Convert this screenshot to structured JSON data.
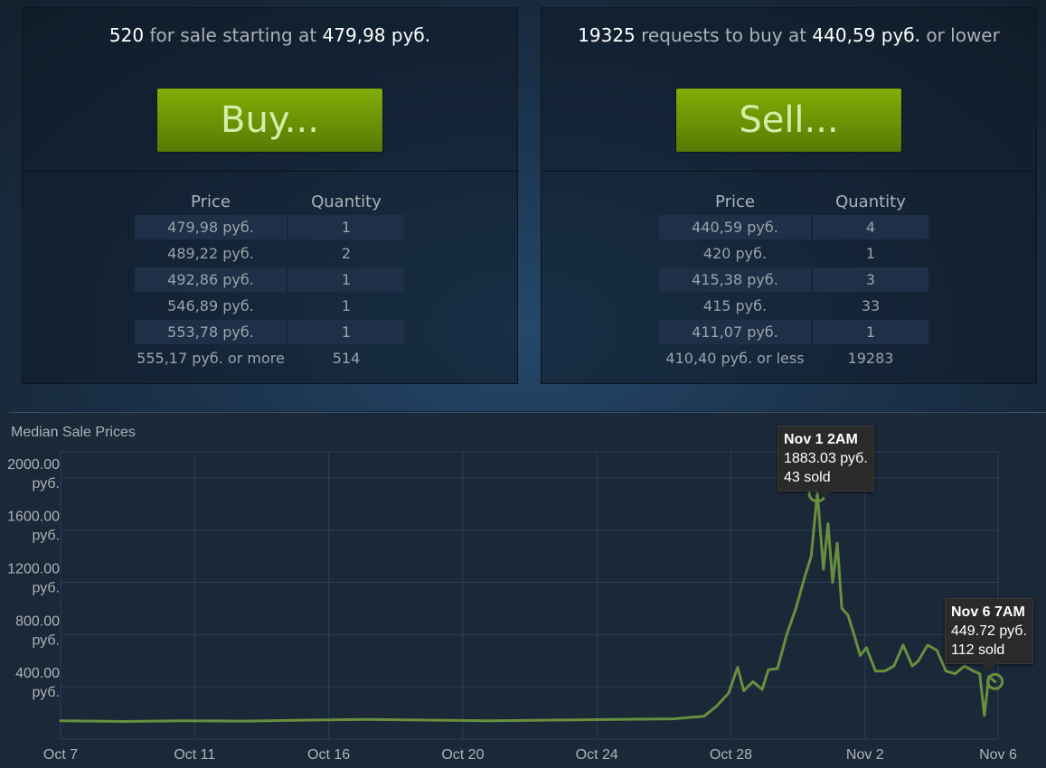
{
  "sell_panel": {
    "count": "520",
    "mid_text": "for sale starting at",
    "price": "479,98 руб.",
    "button_label": "Buy...",
    "col_price": "Price",
    "col_quantity": "Quantity",
    "rows": [
      {
        "price": "479,98 руб.",
        "qty": "1"
      },
      {
        "price": "489,22 руб.",
        "qty": "2"
      },
      {
        "price": "492,86 руб.",
        "qty": "1"
      },
      {
        "price": "546,89 руб.",
        "qty": "1"
      },
      {
        "price": "553,78 руб.",
        "qty": "1"
      },
      {
        "price": "555,17 руб. or more",
        "qty": "514"
      }
    ]
  },
  "buy_panel": {
    "count": "19325",
    "mid_text": "requests to buy at",
    "price": "440,59 руб.",
    "tail_text": "or lower",
    "button_label": "Sell...",
    "col_price": "Price",
    "col_quantity": "Quantity",
    "rows": [
      {
        "price": "440,59 руб.",
        "qty": "4"
      },
      {
        "price": "420 руб.",
        "qty": "1"
      },
      {
        "price": "415,38 руб.",
        "qty": "3"
      },
      {
        "price": "415 руб.",
        "qty": "33"
      },
      {
        "price": "411,07 руб.",
        "qty": "1"
      },
      {
        "price": "410,40 руб. or less",
        "qty": "19283"
      }
    ]
  },
  "colors": {
    "background": "#1b2838",
    "button_green": "#6b9105",
    "button_text": "#d2efa9",
    "line": "#688f3e",
    "grid": "#2a3f5a"
  },
  "chart_data": {
    "type": "line",
    "title": "Median Sale Prices",
    "x_ticks": [
      "Oct 7",
      "Oct 11",
      "Oct 16",
      "Oct 20",
      "Oct 24",
      "Oct 28",
      "Nov 2",
      "Nov 6"
    ],
    "y_ticks": [
      {
        "value": 400,
        "label1": "400.00",
        "label2": "руб."
      },
      {
        "value": 800,
        "label1": "800.00",
        "label2": "руб."
      },
      {
        "value": 1200,
        "label1": "1200.00",
        "label2": "руб."
      },
      {
        "value": 1600,
        "label1": "1600.00",
        "label2": "руб."
      },
      {
        "value": 2000,
        "label1": "2000.00",
        "label2": "руб."
      }
    ],
    "ylim": [
      0,
      2200
    ],
    "xlim_days": [
      0,
      30.6
    ],
    "series": [
      {
        "x_days": [
          0,
          2,
          4,
          6,
          8,
          10,
          12,
          14,
          16,
          18,
          20,
          21,
          21.4,
          21.8,
          22.1,
          22.3,
          22.6,
          22.9,
          23.1,
          23.4,
          23.7,
          24.0,
          24.3,
          24.5,
          24.7,
          24.9,
          25.05,
          25.2,
          25.35,
          25.5,
          25.7,
          25.9,
          26.1,
          26.3,
          26.6,
          26.9,
          27.2,
          27.5,
          27.8,
          28.0,
          28.3,
          28.6,
          28.9,
          29.2,
          29.5,
          29.8,
          30.0,
          30.15,
          30.3,
          30.5
        ],
        "y": [
          140,
          135,
          140,
          138,
          145,
          150,
          145,
          140,
          145,
          150,
          155,
          175,
          250,
          350,
          550,
          370,
          440,
          380,
          530,
          540,
          800,
          1000,
          1250,
          1400,
          1883,
          1300,
          1650,
          1200,
          1500,
          1000,
          950,
          800,
          640,
          700,
          520,
          520,
          560,
          720,
          560,
          600,
          720,
          680,
          520,
          500,
          560,
          520,
          500,
          180,
          480,
          440
        ]
      }
    ],
    "tooltips": [
      {
        "date": "Nov 1 2AM",
        "price": "1883.03 руб.",
        "sold": "43 sold"
      },
      {
        "date": "Nov 6 7AM",
        "price": "449.72 руб.",
        "sold": "112 sold"
      }
    ]
  }
}
